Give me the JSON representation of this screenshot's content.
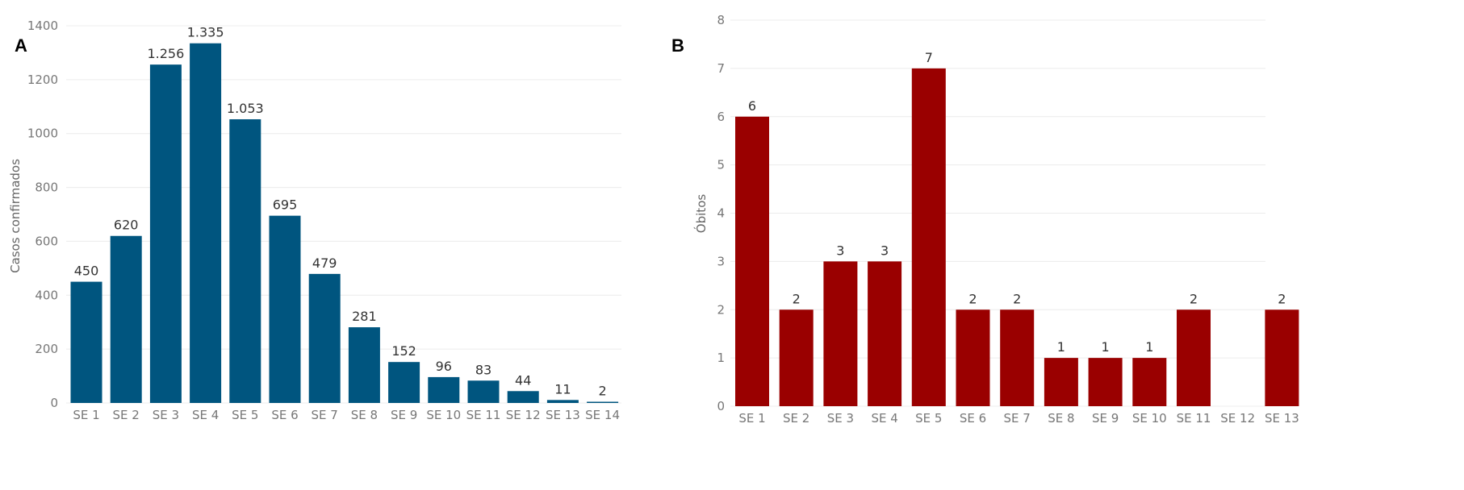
{
  "chart_data": [
    {
      "type": "bar",
      "panel_label": "A",
      "ylabel": "Casos confirmados",
      "xlabel": "",
      "categories": [
        "SE 1",
        "SE 2",
        "SE 3",
        "SE 4",
        "SE 5",
        "SE 6",
        "SE 7",
        "SE 8",
        "SE 9",
        "SE 10",
        "SE 11",
        "SE 12",
        "SE 13",
        "SE 14"
      ],
      "values": [
        450,
        620,
        1256,
        1335,
        1053,
        695,
        479,
        281,
        152,
        96,
        83,
        44,
        11,
        2
      ],
      "value_labels": [
        "450",
        "620",
        "1.256",
        "1.335",
        "1.053",
        "695",
        "479",
        "281",
        "152",
        "96",
        "83",
        "44",
        "11",
        "2"
      ],
      "yticks": [
        0,
        200,
        400,
        600,
        800,
        1000,
        1200,
        1400
      ],
      "ytick_labels": [
        "0",
        "200",
        "400",
        "600",
        "800",
        "1000",
        "1200",
        "1400"
      ],
      "ylim": [
        0,
        1400
      ],
      "color": "#00557f",
      "grid": true
    },
    {
      "type": "bar",
      "panel_label": "B",
      "ylabel": "Óbitos",
      "xlabel": "",
      "categories": [
        "SE 1",
        "SE 2",
        "SE 3",
        "SE 4",
        "SE 5",
        "SE 6",
        "SE 7",
        "SE 8",
        "SE 9",
        "SE 10",
        "SE 11",
        "SE 12",
        "SE 13"
      ],
      "values": [
        6,
        2,
        3,
        3,
        7,
        2,
        2,
        1,
        1,
        1,
        2,
        0,
        2
      ],
      "value_labels": [
        "6",
        "2",
        "3",
        "3",
        "7",
        "2",
        "2",
        "1",
        "1",
        "1",
        "2",
        "",
        "2"
      ],
      "yticks": [
        0,
        1,
        2,
        3,
        4,
        5,
        6,
        7,
        8
      ],
      "ytick_labels": [
        "0",
        "1",
        "2",
        "3",
        "4",
        "5",
        "6",
        "7",
        "8"
      ],
      "ylim": [
        0,
        8
      ],
      "color": "#9a0000",
      "grid": true
    }
  ]
}
